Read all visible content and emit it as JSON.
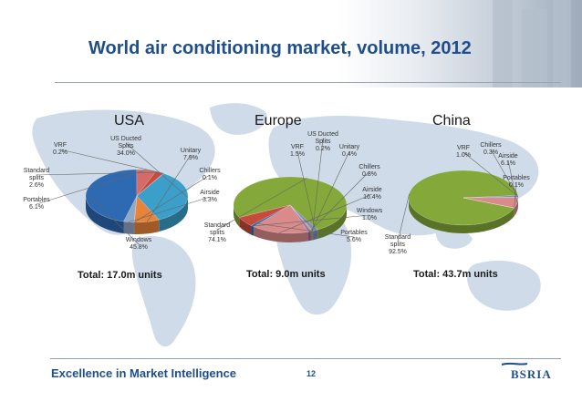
{
  "title": "World air conditioning market, volume, 2012",
  "footer": {
    "text": "Excellence in Market Intelligence",
    "page": "12",
    "logo": "BSRIA"
  },
  "colors": {
    "title": "#1f4e8c",
    "map": "#cfdbe8",
    "green": "#84a83a",
    "ducted": "#3c9fc9",
    "unitary": "#e8843a",
    "vrf": "#7f8fb0",
    "standard": "#c84a3a",
    "portables": "#d46a6a",
    "windows": "#2e69b3",
    "airside": "#d98a8a"
  },
  "chart_data": [
    {
      "type": "pie",
      "title": "USA",
      "total": "Total: 17.0m units",
      "slices": [
        {
          "label": "Windows",
          "value": 45.8,
          "text": "45.8%",
          "color": "#2e69b3"
        },
        {
          "label": "Portables",
          "value": 6.1,
          "text": "6.1%",
          "color": "#d46a6a"
        },
        {
          "label": "Standard splits",
          "value": 2.6,
          "text": "2.6%",
          "color": "#c84a3a"
        },
        {
          "label": "VRF",
          "value": 0.2,
          "text": "0.2%",
          "color": "#7f8fb0"
        },
        {
          "label": "US Ducted Splits",
          "value": 34.0,
          "text": "34.0%",
          "color": "#3c9fc9"
        },
        {
          "label": "Unitary",
          "value": 7.9,
          "text": "7.9%",
          "color": "#e8843a"
        },
        {
          "label": "Chillers",
          "value": 0.1,
          "text": "0.1%",
          "color": "#8a6fb5"
        },
        {
          "label": "Airside",
          "value": 3.3,
          "text": "3.3%",
          "color": "#8fa8c8"
        }
      ]
    },
    {
      "type": "pie",
      "title": "Europe",
      "total": "Total: 9.0m units",
      "slices": [
        {
          "label": "Standard splits",
          "value": 74.1,
          "text": "74.1%",
          "color": "#84a83a"
        },
        {
          "label": "VRF",
          "value": 1.5,
          "text": "1.5%",
          "color": "#7f8fb0"
        },
        {
          "label": "US Ducted Splits",
          "value": 0.2,
          "text": "0.2%",
          "color": "#3c9fc9"
        },
        {
          "label": "Unitary",
          "value": 0.4,
          "text": "0.4%",
          "color": "#e8843a"
        },
        {
          "label": "Chillers",
          "value": 0.8,
          "text": "0.8%",
          "color": "#8a6fb5"
        },
        {
          "label": "Airside",
          "value": 16.4,
          "text": "16.4%",
          "color": "#d98a8a"
        },
        {
          "label": "Windows",
          "value": 1.0,
          "text": "1.0%",
          "color": "#2e69b3"
        },
        {
          "label": "Portables",
          "value": 5.6,
          "text": "5.6%",
          "color": "#c84a3a"
        }
      ]
    },
    {
      "type": "pie",
      "title": "China",
      "total": "Total: 43.7m units",
      "slices": [
        {
          "label": "Standard splits",
          "value": 92.5,
          "text": "92.5%",
          "color": "#84a83a"
        },
        {
          "label": "VRF",
          "value": 1.0,
          "text": "1.0%",
          "color": "#7f8fb0"
        },
        {
          "label": "Chillers",
          "value": 0.3,
          "text": "0.3%",
          "color": "#8a6fb5"
        },
        {
          "label": "Airside",
          "value": 6.1,
          "text": "6.1%",
          "color": "#d98a8a"
        },
        {
          "label": "Portables",
          "value": 0.1,
          "text": "0.1%",
          "color": "#c84a3a"
        }
      ]
    }
  ]
}
